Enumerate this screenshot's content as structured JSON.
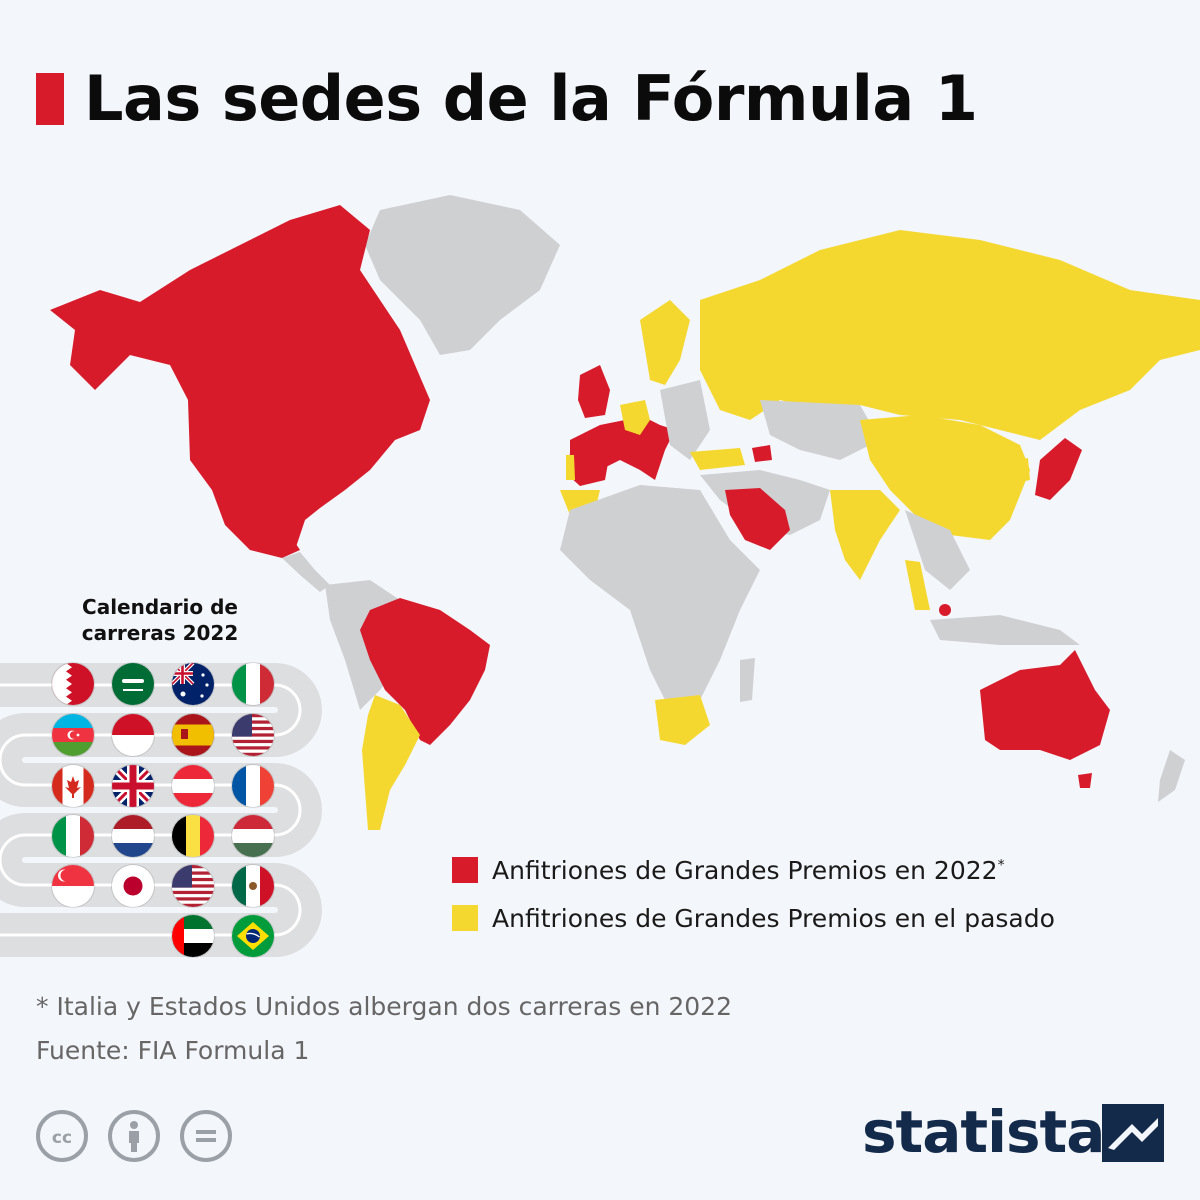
{
  "title": "Las sedes de la Fórmula 1",
  "calendar": {
    "title": "Calendario de carreras 2022",
    "flags": [
      "bahrain-flag",
      "saudi-arabia-flag",
      "australia-flag",
      "italy-flag",
      "azerbaijan-flag",
      "monaco-flag",
      "spain-flag",
      "usa-flag",
      "canada-flag",
      "uk-flag",
      "austria-flag",
      "france-flag",
      "italy-flag",
      "netherlands-flag",
      "belgium-flag",
      "hungary-flag",
      "singapore-flag",
      "japan-flag",
      "usa-flag",
      "mexico-flag",
      "uae-flag",
      "brazil-flag"
    ]
  },
  "legend": {
    "hosts_2022": "Anfitriones de Grandes Premios en 2022",
    "hosts_2022_mark": "*",
    "hosts_past": "Anfitriones de Grandes Premios en el pasado"
  },
  "colors": {
    "hosts_2022": "#d81b2b",
    "hosts_past": "#f5d82f",
    "non_host": "#cfd0d2",
    "background": "#f3f6fa",
    "brand": "#142a4b"
  },
  "map_data": {
    "hosts_2022": [
      "Canada",
      "United States",
      "Mexico",
      "Brazil",
      "United Kingdom",
      "France",
      "Belgium",
      "Netherlands",
      "Monaco",
      "Italy",
      "Austria",
      "Hungary",
      "Spain",
      "Azerbaijan",
      "Saudi Arabia",
      "Bahrain",
      "United Arab Emirates",
      "Singapore",
      "Japan",
      "Australia"
    ],
    "hosts_past": [
      "Argentina",
      "Portugal",
      "Germany",
      "Switzerland",
      "Sweden",
      "Russia",
      "Turkey",
      "Morocco",
      "South Africa",
      "India",
      "China",
      "South Korea",
      "Malaysia",
      "Vietnam"
    ]
  },
  "footnote": "* Italia y Estados Unidos albergan dos carreras en 2022",
  "source": "Fuente: FIA Formula 1",
  "brand": "statista",
  "license_icons": [
    "cc-icon",
    "attribution-icon",
    "no-derivatives-icon"
  ]
}
